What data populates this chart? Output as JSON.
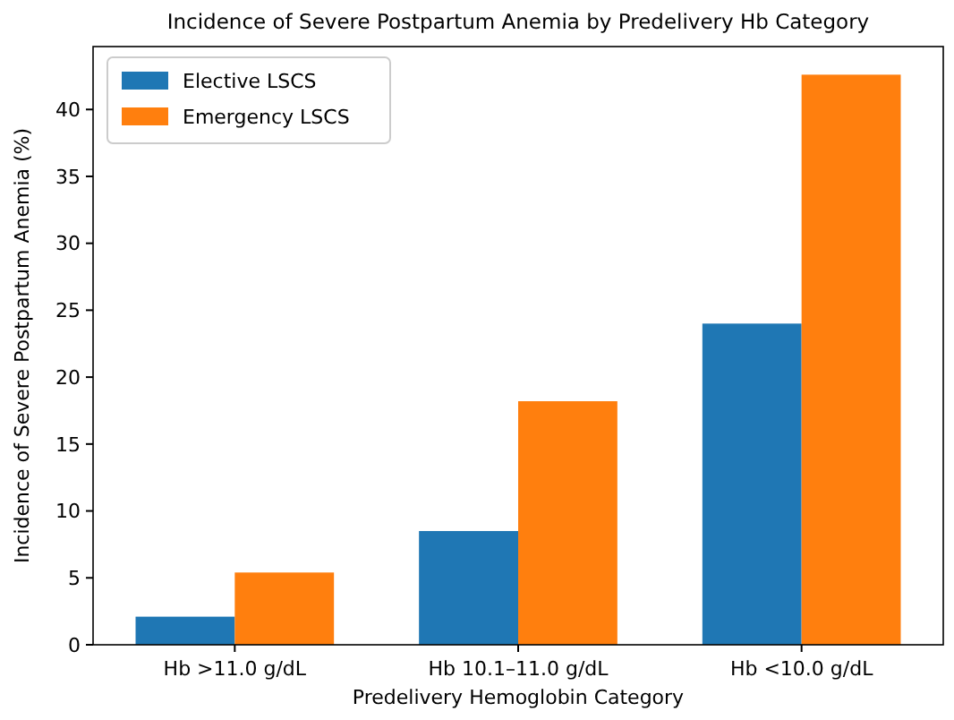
{
  "chart_data": {
    "type": "bar",
    "title": "Incidence of Severe Postpartum Anemia by Predelivery Hb Category",
    "xlabel": "Predelivery Hemoglobin Category",
    "ylabel": "Incidence of Severe Postpartum Anemia (%)",
    "categories": [
      "Hb >11.0 g/dL",
      "Hb 10.1–11.0 g/dL",
      "Hb <10.0 g/dL"
    ],
    "series": [
      {
        "name": "Elective LSCS",
        "color": "#1f77b4",
        "values": [
          2.1,
          8.5,
          24.0
        ]
      },
      {
        "name": "Emergency LSCS",
        "color": "#ff7f0e",
        "values": [
          5.4,
          18.2,
          42.6
        ]
      }
    ],
    "ylim": [
      0,
      44.7
    ],
    "yticks": [
      0,
      5,
      10,
      15,
      20,
      25,
      30,
      35,
      40
    ],
    "legend": "top left"
  }
}
